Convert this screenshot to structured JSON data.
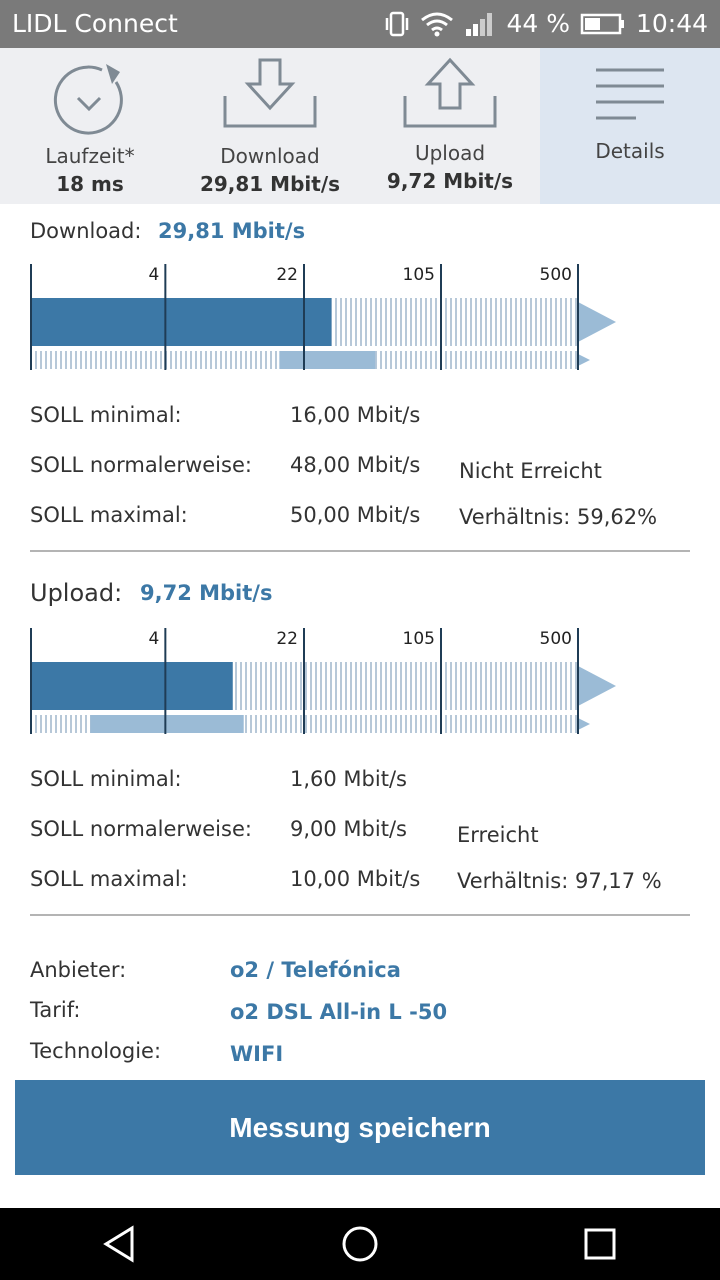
{
  "status_bar": {
    "app_name": "LIDL Connect",
    "battery": "44 %",
    "time": "10:44"
  },
  "tabs": [
    {
      "label": "Laufzeit*",
      "value": "18 ms",
      "icon": "timer-icon"
    },
    {
      "label": "Download",
      "value": "29,81 Mbit/s",
      "icon": "download-icon"
    },
    {
      "label": "Upload",
      "value": "9,72 Mbit/s",
      "icon": "upload-icon"
    },
    {
      "label": "Details",
      "value": "",
      "icon": "menu-lines-icon"
    }
  ],
  "download": {
    "title": "Download:",
    "speed": "29,81 Mbit/s",
    "scale_ticks": [
      "4",
      "22",
      "105",
      "500"
    ],
    "measured_fraction": 0.55,
    "soll_range_fraction": [
      0.455,
      0.63
    ],
    "rows": [
      {
        "label": "SOLL minimal:",
        "value": "16,00 Mbit/s"
      },
      {
        "label": "SOLL normalerweise:",
        "value": "48,00 Mbit/s"
      },
      {
        "label": "SOLL maximal:",
        "value": "50,00 Mbit/s"
      }
    ],
    "status": "Nicht Erreicht",
    "ratio": "Verhältnis: 59,62%"
  },
  "upload": {
    "title": "Upload:",
    "speed": "9,72 Mbit/s",
    "scale_ticks": [
      "4",
      "22",
      "105",
      "500"
    ],
    "measured_fraction": 0.37,
    "soll_range_fraction": [
      0.11,
      0.39
    ],
    "rows": [
      {
        "label": "SOLL minimal:",
        "value": "1,60 Mbit/s"
      },
      {
        "label": "SOLL normalerweise:",
        "value": "9,00 Mbit/s"
      },
      {
        "label": "SOLL maximal:",
        "value": "10,00 Mbit/s"
      }
    ],
    "status": "Erreicht",
    "ratio": "Verhältnis: 97,17 %"
  },
  "info": [
    {
      "label": "Anbieter:",
      "value": "o2 / Telefónica"
    },
    {
      "label": "Tarif:",
      "value": "o2 DSL All-in L -50"
    },
    {
      "label": "Technologie:",
      "value": "WIFI"
    }
  ],
  "save_button": "Messung speichern",
  "colors": {
    "accent": "#3c78a6",
    "light_bar": "#9bbbd6",
    "status_bar": "#7a7a7a"
  }
}
